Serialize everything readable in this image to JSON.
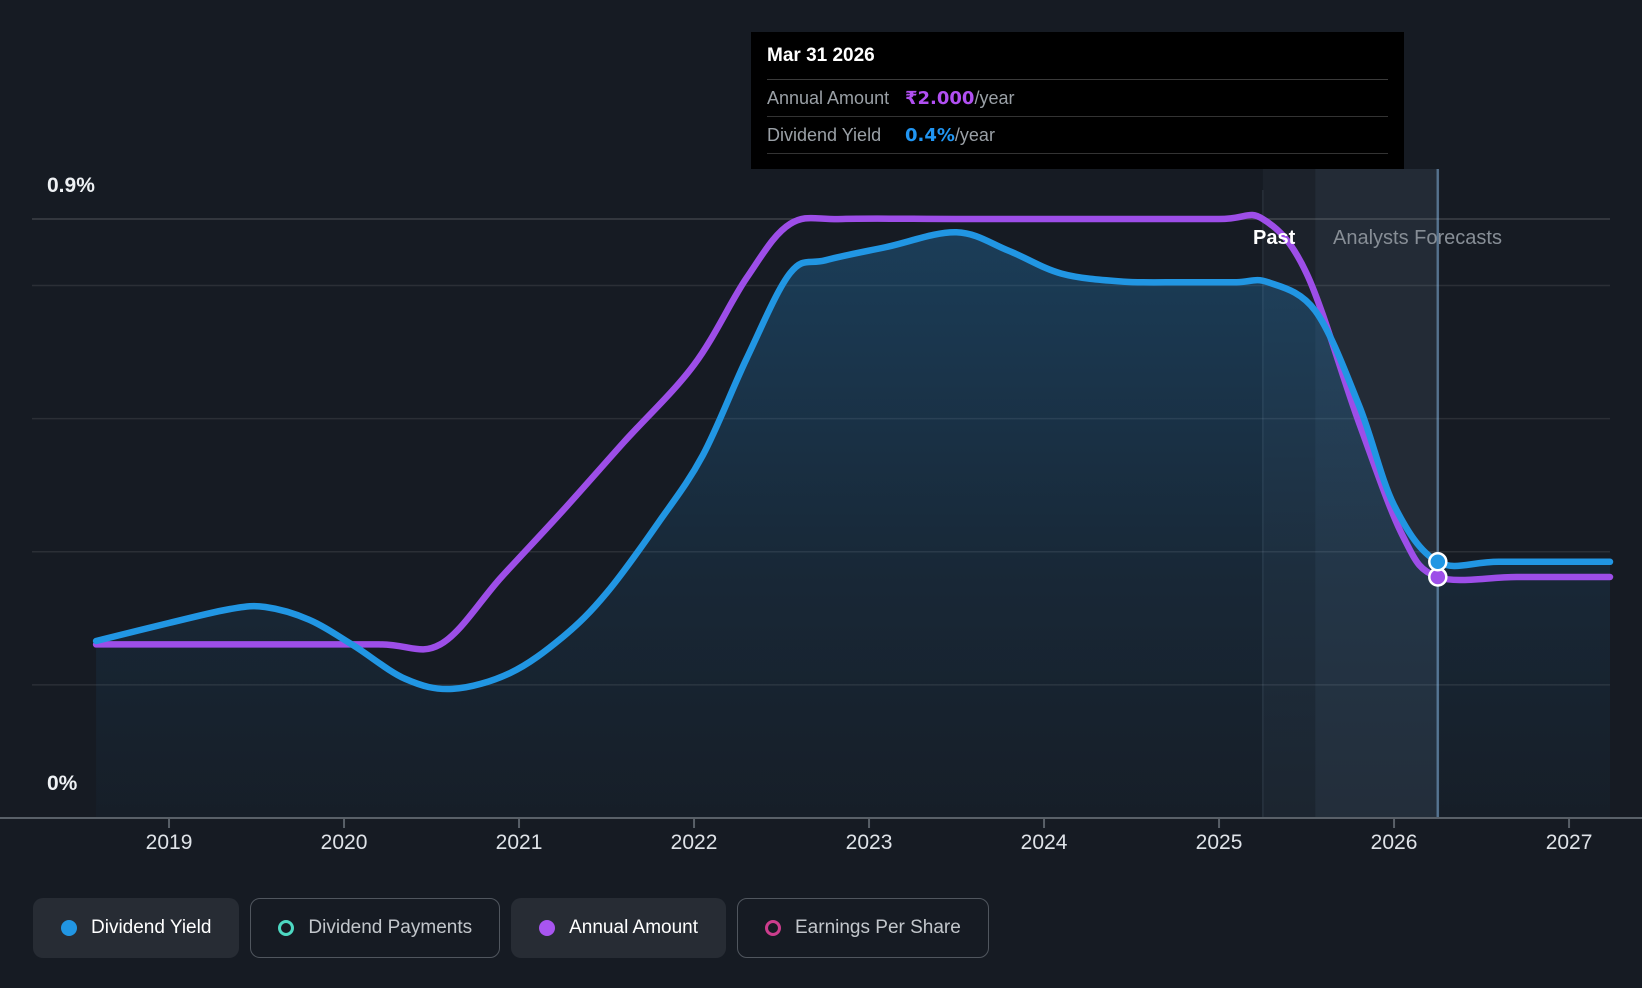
{
  "labels": {
    "y_top": "0.9%",
    "y_bottom": "0%",
    "past": "Past",
    "forecast": "Analysts Forecasts"
  },
  "tooltip": {
    "date": "Mar 31 2026",
    "rows": [
      {
        "label": "Annual Amount",
        "value": "₹2.000",
        "unit": "/year",
        "color": "#b14ff2"
      },
      {
        "label": "Dividend Yield",
        "value": "0.4%",
        "unit": "/year",
        "color": "#2196f3"
      }
    ]
  },
  "legend": [
    {
      "label": "Dividend Yield",
      "state": "active",
      "marker": "dot",
      "color": "#2196e3"
    },
    {
      "label": "Dividend Payments",
      "state": "inactive",
      "marker": "ring",
      "color": "#4dd8c2"
    },
    {
      "label": "Annual Amount",
      "state": "active",
      "marker": "dot",
      "color": "#a855f0"
    },
    {
      "label": "Earnings Per Share",
      "state": "inactive",
      "marker": "ring",
      "color": "#cc3d8d"
    }
  ],
  "chart_data": {
    "type": "line",
    "title": "Dividend yield and annual amount over time with analysts forecasts",
    "x_axis": {
      "tick_years": [
        "2019",
        "2020",
        "2021",
        "2022",
        "2023",
        "2024",
        "2025",
        "2026",
        "2027"
      ],
      "range": [
        2018.217,
        2027.234
      ]
    },
    "yield_axis": {
      "label_top": "0.9%",
      "label_bottom": "0%",
      "ylim": [
        0,
        0.9
      ],
      "gridlines_pct": [
        0.9,
        0.8,
        0.6,
        0.4,
        0.2
      ],
      "unit": "%"
    },
    "amount_axis": {
      "unit": "₹",
      "ylim": [
        0,
        4.97
      ]
    },
    "past_end_year": 2025.25,
    "hover_year": 2026.25,
    "hover_band_year": 2025.55,
    "legend_position": "bottom",
    "grid": true,
    "series": [
      {
        "name": "Dividend Yield",
        "axis": "yield",
        "color": "#2196e3",
        "area_fill": true,
        "points": [
          [
            2018.583,
            0.266
          ],
          [
            2019.0,
            0.293
          ],
          [
            2019.35,
            0.314
          ],
          [
            2019.55,
            0.317
          ],
          [
            2019.8,
            0.298
          ],
          [
            2020.05,
            0.26
          ],
          [
            2020.35,
            0.209
          ],
          [
            2020.62,
            0.194
          ],
          [
            2020.95,
            0.218
          ],
          [
            2021.25,
            0.272
          ],
          [
            2021.5,
            0.338
          ],
          [
            2021.8,
            0.445
          ],
          [
            2022.05,
            0.545
          ],
          [
            2022.3,
            0.69
          ],
          [
            2022.55,
            0.819
          ],
          [
            2022.75,
            0.838
          ],
          [
            2023.1,
            0.858
          ],
          [
            2023.5,
            0.88
          ],
          [
            2023.8,
            0.852
          ],
          [
            2024.1,
            0.818
          ],
          [
            2024.45,
            0.806
          ],
          [
            2024.8,
            0.805
          ],
          [
            2025.1,
            0.805
          ],
          [
            2025.28,
            0.805
          ],
          [
            2025.55,
            0.762
          ],
          [
            2025.8,
            0.62
          ],
          [
            2026.0,
            0.47
          ],
          [
            2026.25,
            0.385
          ],
          [
            2026.6,
            0.385
          ],
          [
            2027.234,
            0.385
          ]
        ],
        "end_marker_year": 2026.25,
        "end_marker_value": 0.385
      },
      {
        "name": "Annual Amount",
        "axis": "amount",
        "color": "#9d4ee8",
        "area_fill": false,
        "points": [
          [
            2018.583,
            1.44
          ],
          [
            2019.5,
            1.44
          ],
          [
            2020.2,
            1.44
          ],
          [
            2020.55,
            1.44
          ],
          [
            2020.9,
            2.0
          ],
          [
            2021.25,
            2.55
          ],
          [
            2021.6,
            3.12
          ],
          [
            2022.0,
            3.76
          ],
          [
            2022.3,
            4.48
          ],
          [
            2022.55,
            4.93
          ],
          [
            2022.85,
            4.97
          ],
          [
            2023.5,
            4.97
          ],
          [
            2024.3,
            4.97
          ],
          [
            2025.0,
            4.97
          ],
          [
            2025.25,
            4.97
          ],
          [
            2025.5,
            4.52
          ],
          [
            2025.8,
            3.28
          ],
          [
            2026.05,
            2.34
          ],
          [
            2026.25,
            2.0
          ],
          [
            2026.7,
            2.0
          ],
          [
            2027.234,
            2.0
          ]
        ],
        "end_marker_year": 2026.25,
        "end_marker_value": 2.0
      }
    ]
  }
}
